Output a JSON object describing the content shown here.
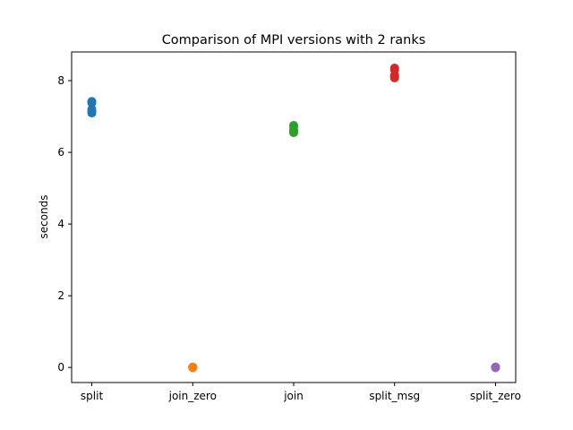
{
  "chart_data": {
    "type": "scatter",
    "title": "Comparison of MPI versions with 2 ranks",
    "xlabel": "",
    "ylabel": "seconds",
    "categories": [
      "split",
      "join_zero",
      "join",
      "split_msg",
      "split_zero"
    ],
    "ylim": [
      -0.42,
      8.8
    ],
    "yticks": [
      0,
      2,
      4,
      6,
      8
    ],
    "grid": false,
    "legend": "none",
    "series": [
      {
        "category": "split",
        "color": "#1f77b4",
        "values": [
          7.1,
          7.15,
          7.2,
          7.38,
          7.42
        ]
      },
      {
        "category": "join_zero",
        "color": "#ff7f0e",
        "values": [
          0.0,
          0.0,
          0.01,
          0.01,
          0.0
        ]
      },
      {
        "category": "join",
        "color": "#2ca02c",
        "values": [
          6.55,
          6.58,
          6.62,
          6.72,
          6.75
        ]
      },
      {
        "category": "split_msg",
        "color": "#d62728",
        "values": [
          8.08,
          8.12,
          8.15,
          8.3,
          8.35
        ]
      },
      {
        "category": "split_zero",
        "color": "#9467bd",
        "values": [
          0.0,
          0.0,
          0.01,
          0.01,
          0.0
        ]
      }
    ]
  }
}
